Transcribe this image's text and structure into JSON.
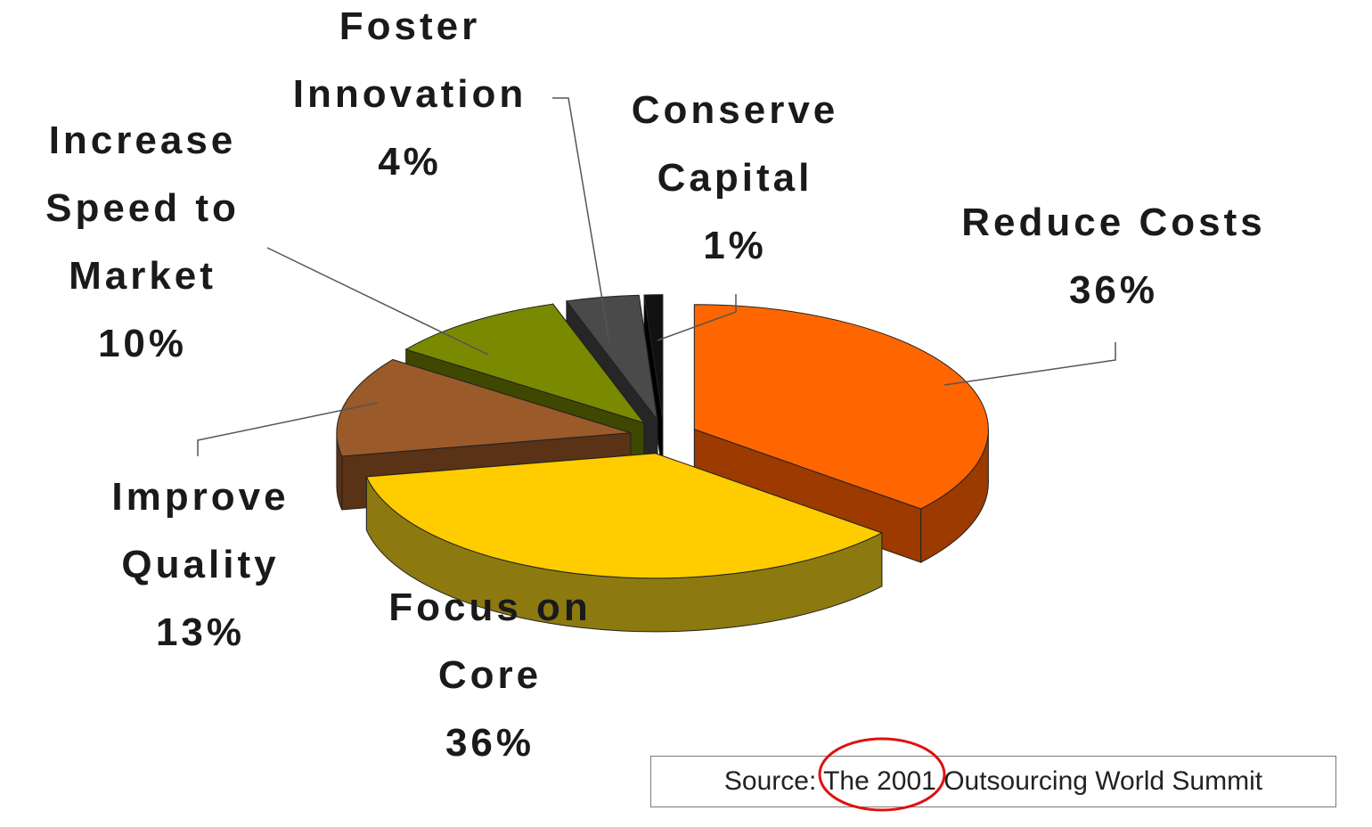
{
  "chart_data": {
    "type": "pie",
    "style": "3d-exploded",
    "slices": [
      {
        "label_lines": [
          "Reduce Costs",
          "36%"
        ],
        "name": "Reduce Costs",
        "value": 36,
        "color": "#ff6600",
        "side": "#9c3a00"
      },
      {
        "label_lines": [
          "Focus on",
          "Core",
          "36%"
        ],
        "name": "Focus on Core",
        "value": 36,
        "color": "#ffcc00",
        "side": "#8c7a10"
      },
      {
        "label_lines": [
          "Improve",
          "Quality",
          "13%"
        ],
        "name": "Improve Quality",
        "value": 13,
        "color": "#9a5a2a",
        "side": "#5a3216"
      },
      {
        "label_lines": [
          "Increase",
          "Speed to",
          "Market",
          "10%"
        ],
        "name": "Increase Speed to Market",
        "value": 10,
        "color": "#7a8a00",
        "side": "#3f4800"
      },
      {
        "label_lines": [
          "Foster",
          "Innovation",
          "4%"
        ],
        "name": "Foster Innovation",
        "value": 4,
        "color": "#4a4a4a",
        "side": "#262626"
      },
      {
        "label_lines": [
          "Conserve",
          "Capital",
          "1%"
        ],
        "name": "Conserve Capital",
        "value": 1,
        "color": "#111111",
        "side": "#000000"
      }
    ]
  },
  "source": {
    "text": "Source: The 2001 Outsourcing World Summit",
    "highlight_color": "#e01010"
  }
}
